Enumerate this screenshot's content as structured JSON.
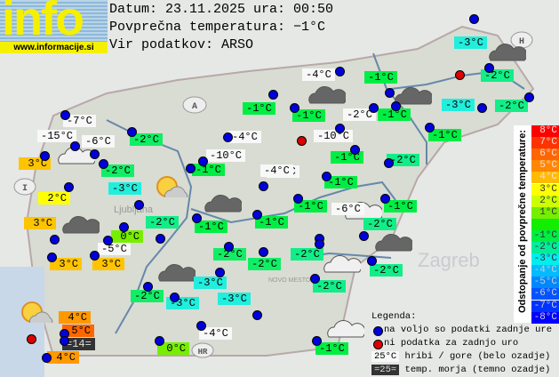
{
  "logo": {
    "text": "info",
    "url": "www.informacije.si"
  },
  "header": {
    "date_line": "Datum: 23.11.2025 ura: 00:50",
    "avg_temp_line": "Povprečna temperatura: −1°C",
    "source_line": "Vir podatkov: ARSO"
  },
  "map_labels": {
    "austria": "A",
    "hungary": "H",
    "italy": "I",
    "croatia": "HR",
    "zagreb": "Zagreb",
    "ljubljana": "Ljubljana",
    "novo_mesto": "NOVO MESTO"
  },
  "stations": [
    {
      "temp": "-3°C",
      "bg": "#22eedd"
    },
    {
      "temp": "-2°C",
      "bg": "#11ee88"
    },
    {
      "temp": "-2°C",
      "bg": "#11ee88"
    },
    {
      "temp": "-3°C",
      "bg": "#22eedd"
    },
    {
      "temp": "-1°C",
      "bg": "#00ee44"
    },
    {
      "temp": "-4°C",
      "bg": "#f8f8f8"
    },
    {
      "temp": "-1°C",
      "bg": "#00ee44"
    },
    {
      "temp": "-2°C",
      "bg": "#f8f8f8"
    },
    {
      "temp": "-1°C",
      "bg": "#00ee44"
    },
    {
      "temp": "-10°C",
      "bg": "#f8f8f8"
    },
    {
      "temp": "-1°C",
      "bg": "#00ee44"
    },
    {
      "temp": "-1°C",
      "bg": "#00ee44"
    },
    {
      "temp": "-2°C",
      "bg": "#11ee88"
    },
    {
      "temp": "-4°C",
      "bg": "#f8f8f8"
    },
    {
      "temp": "-1°C",
      "bg": "#00ee44"
    },
    {
      "temp": "-1°C",
      "bg": "#00ee44"
    },
    {
      "temp": "-6°C",
      "bg": "#f8f8f8"
    },
    {
      "temp": "-1°C",
      "bg": "#00ee44"
    },
    {
      "temp": "-2°C",
      "bg": "#11ee88"
    },
    {
      "temp": "-1°C",
      "bg": "#00ee44"
    },
    {
      "temp": "-7°C",
      "bg": "#f8f8f8"
    },
    {
      "temp": "-15°C",
      "bg": "#f8f8f8"
    },
    {
      "temp": "-6°C",
      "bg": "#f8f8f8"
    },
    {
      "temp": "3°C",
      "bg": "#ffc400"
    },
    {
      "temp": "-2°C",
      "bg": "#11ee66"
    },
    {
      "temp": "-4°C",
      "bg": "#f8f8f8"
    },
    {
      "temp": "-2°C",
      "bg": "#11ee66"
    },
    {
      "temp": "-10°C",
      "bg": "#f8f8f8"
    },
    {
      "temp": "-1°C",
      "bg": "#00ee44"
    },
    {
      "temp": "-4°C",
      "bg": "#f8f8f8"
    },
    {
      "temp": "-3°C",
      "bg": "#22eedd"
    },
    {
      "temp": "2°C",
      "bg": "#ffff00"
    },
    {
      "temp": "3°C",
      "bg": "#ffc400"
    },
    {
      "temp": "0°C",
      "bg": "#77ee00"
    },
    {
      "temp": "-2°C",
      "bg": "#11ee88"
    },
    {
      "temp": "-1°C",
      "bg": "#00ee44"
    },
    {
      "temp": "-1°C",
      "bg": "#00ee44"
    },
    {
      "temp": "-5°C",
      "bg": "#f8f8f8"
    },
    {
      "temp": "3°C",
      "bg": "#ffc400"
    },
    {
      "temp": "3°C",
      "bg": "#ffc400"
    },
    {
      "temp": "-2°C",
      "bg": "#11ee66"
    },
    {
      "temp": "-2°C",
      "bg": "#11ee66"
    },
    {
      "temp": "-3°C",
      "bg": "#22eedd"
    },
    {
      "temp": "-2°C",
      "bg": "#11ee66"
    },
    {
      "temp": "-3°C",
      "bg": "#22eedd"
    },
    {
      "temp": "-3°C",
      "bg": "#22eedd"
    },
    {
      "temp": "4°C",
      "bg": "#ff9900"
    },
    {
      "temp": "5°C",
      "bg": "#ff6600"
    },
    {
      "temp": "=14=",
      "bg": "#333333"
    },
    {
      "temp": "4°C",
      "bg": "#ff9900"
    },
    {
      "temp": "0°C",
      "bg": "#77ee00"
    },
    {
      "temp": "-4°C",
      "bg": "#f8f8f8"
    },
    {
      "temp": "-2°C",
      "bg": "#11ee88"
    },
    {
      "temp": "-2°C",
      "bg": "#11ee88"
    },
    {
      "temp": "-2°C",
      "bg": "#11ee88"
    },
    {
      "temp": "-1°C",
      "bg": "#00ee44"
    }
  ],
  "dots": {
    "ok_color": "#0000dd",
    "missing_color": "#dd0000"
  },
  "scale": {
    "title": "Odstopanje od povprečne temperature:",
    "cells": [
      {
        "t": "8°C",
        "c": "#ff0000"
      },
      {
        "t": "7°C",
        "c": "#ff3300"
      },
      {
        "t": "6°C",
        "c": "#ff6600"
      },
      {
        "t": "5°C",
        "c": "#ff8800"
      },
      {
        "t": "4°C",
        "c": "#ffbb00"
      },
      {
        "t": "3°C",
        "c": "#ffff00"
      },
      {
        "t": "2°C",
        "c": "#ccff00"
      },
      {
        "t": "1°C",
        "c": "#77ee00"
      },
      {
        "t": "",
        "c": "#11ee00"
      },
      {
        "t": "-1°C",
        "c": "#00ee44"
      },
      {
        "t": "-2°C",
        "c": "#00ee99"
      },
      {
        "t": "-3°C",
        "c": "#00eeee"
      },
      {
        "t": "-4°C",
        "c": "#00bbff"
      },
      {
        "t": "-5°C",
        "c": "#0088ff"
      },
      {
        "t": "-6°C",
        "c": "#0055ff"
      },
      {
        "t": "-7°C",
        "c": "#0033ff"
      },
      {
        "t": "-8°C",
        "c": "#0000ff"
      }
    ]
  },
  "legend": {
    "title": "Legenda:",
    "ok": "na voljo so podatki zadnje ure",
    "missing": "ni podatka za zadnjo uro",
    "mountain_sample": "25°C",
    "mountain": "hribi / gore (belo ozadje)",
    "sea_sample": "=25=",
    "sea": "temp. morja (temno ozadje)"
  }
}
